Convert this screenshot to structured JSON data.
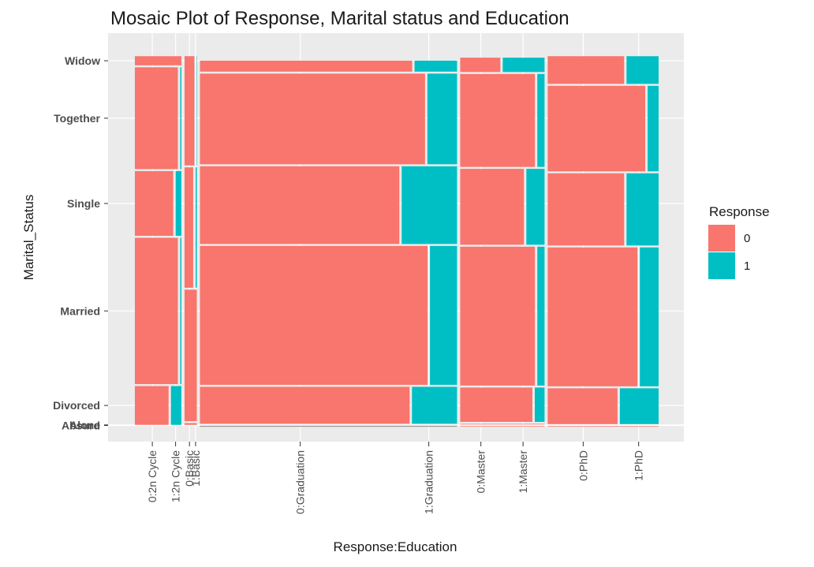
{
  "chart_data": {
    "type": "mosaic",
    "title": "Mosaic Plot of Response, Marital status and Education",
    "xlabel": "Response:Education",
    "ylabel": "Marital_Status",
    "y_categories": [
      "Absurd",
      "Alone",
      "Divorced",
      "Married",
      "Single",
      "Together",
      "Widow"
    ],
    "x_categories": [
      "0:2n Cycle",
      "1:2n Cycle",
      "0:Basic",
      "1:Basic",
      "0:Graduation",
      "1:Graduation",
      "0:Master",
      "1:Master",
      "0:PhD",
      "1:PhD"
    ],
    "education": [
      "2n Cycle",
      "Basic",
      "Graduation",
      "Master",
      "PhD"
    ],
    "education_share": [
      0.091,
      0.024,
      0.503,
      0.165,
      0.217
    ],
    "marital_share_by_education": [
      [
        0.0,
        0.0,
        0.11,
        0.4,
        0.18,
        0.28,
        0.03
      ],
      [
        0.0,
        0.0,
        0.01,
        0.36,
        0.33,
        0.3,
        0.0
      ],
      [
        0.002,
        0.001,
        0.105,
        0.38,
        0.215,
        0.25,
        0.035
      ],
      [
        0.002,
        0.006,
        0.098,
        0.38,
        0.21,
        0.256,
        0.044
      ],
      [
        0.0,
        0.002,
        0.102,
        0.38,
        0.2,
        0.236,
        0.08
      ]
    ],
    "response1_share": [
      [
        0.0,
        0.0,
        0.25,
        0.05,
        0.15,
        0.05,
        0.0
      ],
      [
        0.0,
        0.0,
        0.0,
        0.0,
        0.2,
        0.1,
        1.0
      ],
      [
        1.0,
        0.0,
        0.18,
        0.11,
        0.22,
        0.12,
        0.17
      ],
      [
        0.0,
        0.0,
        0.13,
        0.1,
        0.23,
        0.1,
        0.51
      ],
      [
        0.0,
        0.0,
        0.36,
        0.18,
        0.3,
        0.11,
        0.3
      ]
    ],
    "legend": {
      "title": "Response",
      "entries": [
        {
          "label": "0",
          "color": "#F8766D"
        },
        {
          "label": "1",
          "color": "#00BFC4"
        }
      ],
      "position": "right"
    }
  }
}
